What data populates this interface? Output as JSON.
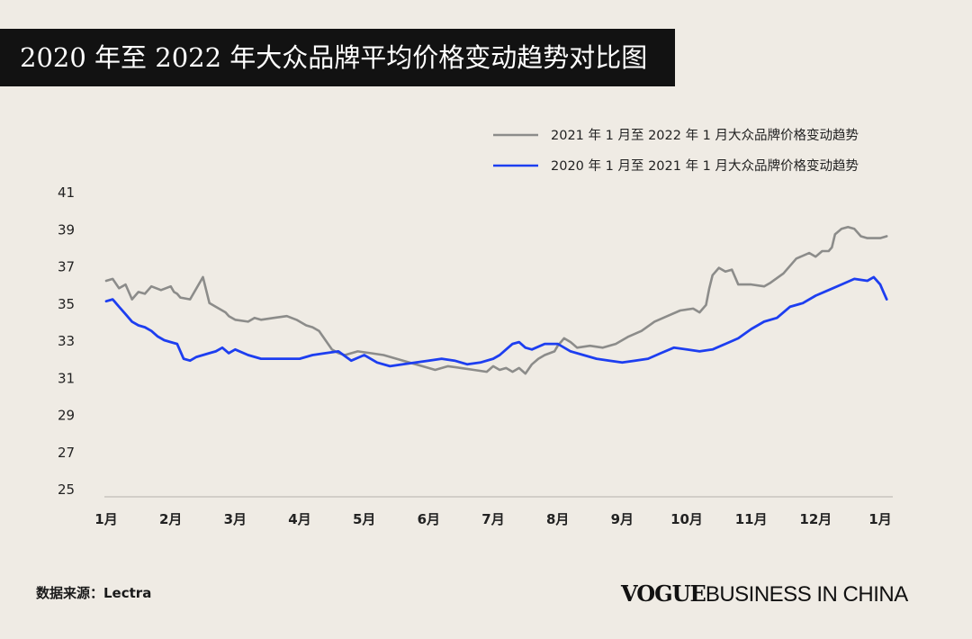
{
  "page": {
    "title": "2020 年至 2022 年大众品牌平均价格变动趋势对比图",
    "source": "数据来源：Lectra",
    "brand_vogue": "VOGUE",
    "brand_rest": "BUSINESS IN CHINA"
  },
  "chart_data": {
    "type": "line",
    "title": "2020 年至 2022 年大众品牌平均价格变动趋势对比图",
    "xlabel": "",
    "ylabel": "",
    "ylim": [
      25,
      41
    ],
    "yticks": [
      41,
      39,
      37,
      35,
      33,
      31,
      29,
      27,
      25
    ],
    "categories": [
      "1月",
      "2月",
      "3月",
      "4月",
      "5月",
      "6月",
      "7月",
      "8月",
      "9月",
      "10月",
      "11月",
      "12月",
      "1月"
    ],
    "legend_position": "top-right",
    "series": [
      {
        "name": "2021 年 1 月至 2022 年 1 月大众品牌价格变动趋势",
        "color": "#8c8c8a",
        "x": [
          0,
          0.1,
          0.2,
          0.3,
          0.4,
          0.5,
          0.6,
          0.7,
          0.85,
          1.0,
          1.05,
          1.1,
          1.15,
          1.3,
          1.5,
          1.6,
          1.7,
          1.8,
          1.85,
          1.9,
          2.0,
          2.2,
          2.3,
          2.4,
          2.6,
          2.8,
          2.95,
          3.1,
          3.2,
          3.3,
          3.5,
          3.6,
          3.7,
          3.9,
          4.1,
          4.3,
          4.5,
          4.7,
          4.9,
          5.0,
          5.1,
          5.3,
          5.5,
          5.7,
          5.9,
          6.0,
          6.1,
          6.2,
          6.3,
          6.4,
          6.5,
          6.6,
          6.7,
          6.8,
          6.95,
          7.0,
          7.1,
          7.2,
          7.3,
          7.5,
          7.7,
          7.9,
          8.1,
          8.3,
          8.5,
          8.7,
          8.9,
          9.1,
          9.2,
          9.3,
          9.35,
          9.4,
          9.5,
          9.6,
          9.7,
          9.8,
          10.0,
          10.2,
          10.3,
          10.5,
          10.7,
          10.9,
          11.0,
          11.1,
          11.2,
          11.25,
          11.3,
          11.4,
          11.5,
          11.6,
          11.7,
          11.8,
          12.0,
          12.1
        ],
        "values": [
          36.2,
          36.3,
          35.8,
          36.0,
          35.2,
          35.6,
          35.5,
          35.9,
          35.7,
          35.9,
          35.6,
          35.5,
          35.3,
          35.2,
          36.4,
          35.0,
          34.8,
          34.6,
          34.5,
          34.3,
          34.1,
          34.0,
          34.2,
          34.1,
          34.2,
          34.3,
          34.1,
          33.8,
          33.7,
          33.5,
          32.5,
          32.3,
          32.2,
          32.4,
          32.3,
          32.2,
          32.0,
          31.8,
          31.6,
          31.5,
          31.4,
          31.6,
          31.5,
          31.4,
          31.3,
          31.6,
          31.4,
          31.5,
          31.3,
          31.5,
          31.2,
          31.7,
          32.0,
          32.2,
          32.4,
          32.7,
          33.1,
          32.9,
          32.6,
          32.7,
          32.6,
          32.8,
          33.2,
          33.5,
          34.0,
          34.3,
          34.6,
          34.7,
          34.5,
          34.9,
          35.8,
          36.5,
          36.9,
          36.7,
          36.8,
          36.0,
          36.0,
          35.9,
          36.1,
          36.6,
          37.4,
          37.7,
          37.5,
          37.8,
          37.8,
          38.0,
          38.7,
          39.0,
          39.1,
          39.0,
          38.6,
          38.5,
          38.5,
          38.6
        ]
      },
      {
        "name": "2020 年 1 月至 2021 年 1 月大众品牌价格变动趋势",
        "color": "#1d3ef0",
        "x": [
          0,
          0.1,
          0.2,
          0.3,
          0.4,
          0.5,
          0.6,
          0.7,
          0.8,
          0.9,
          1.0,
          1.1,
          1.2,
          1.3,
          1.4,
          1.5,
          1.6,
          1.7,
          1.8,
          1.9,
          2.0,
          2.2,
          2.4,
          2.6,
          2.8,
          3.0,
          3.2,
          3.4,
          3.6,
          3.8,
          4.0,
          4.2,
          4.4,
          4.6,
          4.8,
          5.0,
          5.2,
          5.4,
          5.6,
          5.8,
          6.0,
          6.1,
          6.2,
          6.3,
          6.4,
          6.5,
          6.6,
          6.8,
          7.0,
          7.2,
          7.4,
          7.6,
          7.8,
          8.0,
          8.2,
          8.4,
          8.6,
          8.8,
          9.0,
          9.2,
          9.4,
          9.6,
          9.8,
          10.0,
          10.2,
          10.4,
          10.6,
          10.8,
          11.0,
          11.2,
          11.4,
          11.6,
          11.8,
          11.9,
          12.0,
          12.05,
          12.1
        ],
        "values": [
          35.1,
          35.2,
          34.8,
          34.4,
          34.0,
          33.8,
          33.7,
          33.5,
          33.2,
          33.0,
          32.9,
          32.8,
          32.0,
          31.9,
          32.1,
          32.2,
          32.3,
          32.4,
          32.6,
          32.3,
          32.5,
          32.2,
          32.0,
          32.0,
          32.0,
          32.0,
          32.2,
          32.3,
          32.4,
          31.9,
          32.2,
          31.8,
          31.6,
          31.7,
          31.8,
          31.9,
          32.0,
          31.9,
          31.7,
          31.8,
          32.0,
          32.2,
          32.5,
          32.8,
          32.9,
          32.6,
          32.5,
          32.8,
          32.8,
          32.4,
          32.2,
          32.0,
          31.9,
          31.8,
          31.9,
          32.0,
          32.3,
          32.6,
          32.5,
          32.4,
          32.5,
          32.8,
          33.1,
          33.6,
          34.0,
          34.2,
          34.8,
          35.0,
          35.4,
          35.7,
          36.0,
          36.3,
          36.2,
          36.4,
          36.0,
          35.6,
          35.2
        ]
      }
    ]
  }
}
